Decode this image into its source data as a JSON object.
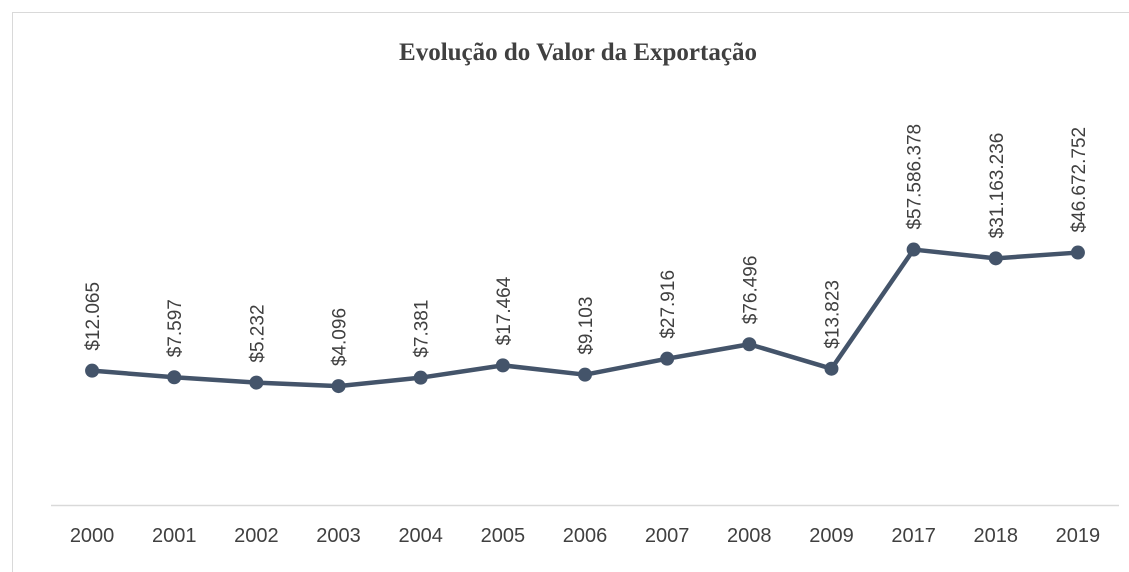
{
  "chart_data": {
    "type": "line",
    "title": "Evolução do Valor da Exportação",
    "categories": [
      "2000",
      "2001",
      "2002",
      "2003",
      "2004",
      "2005",
      "2006",
      "2007",
      "2008",
      "2009",
      "2017",
      "2018",
      "2019"
    ],
    "values": [
      12065,
      7597,
      5232,
      4096,
      7381,
      17464,
      9103,
      27916,
      76496,
      13823,
      57586378,
      31163236,
      46672752
    ],
    "value_labels": [
      "$12.065",
      "$7.597",
      "$5.232",
      "$4.096",
      "$7.381",
      "$17.464",
      "$9.103",
      "$27.916",
      "$76.496",
      "$13.823",
      "$57.586.378",
      "$31.163.236",
      "$46.672.752"
    ],
    "color": "#44546a",
    "log_scale": true,
    "ylim": [
      1,
      1000000000000
    ]
  }
}
